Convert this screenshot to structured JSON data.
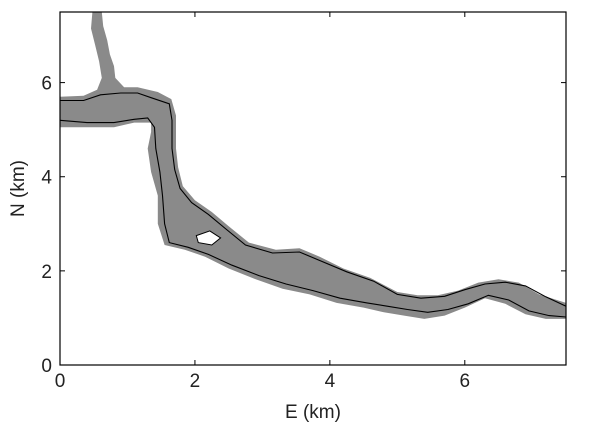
{
  "chart_data": {
    "type": "area",
    "title": "",
    "xlabel": "E (km)",
    "ylabel": "N (km)",
    "xlim": [
      0,
      7.5
    ],
    "ylim": [
      0,
      7.5
    ],
    "xticks": [
      0,
      2,
      4,
      6
    ],
    "yticks": [
      0,
      2,
      4,
      6
    ],
    "grid": false,
    "colors": {
      "fill": "#8a8a8a",
      "outline": "#000000",
      "frame": "#000000"
    },
    "series": [
      {
        "kind": "filled-region",
        "points": [
          [
            0.48,
            7.5
          ],
          [
            0.62,
            7.5
          ],
          [
            0.64,
            7.2
          ],
          [
            0.7,
            6.9
          ],
          [
            0.74,
            6.6
          ],
          [
            0.8,
            6.35
          ],
          [
            0.82,
            6.1
          ],
          [
            0.95,
            5.9
          ],
          [
            1.15,
            5.9
          ],
          [
            1.45,
            5.8
          ],
          [
            1.65,
            5.65
          ],
          [
            1.72,
            5.3
          ],
          [
            1.72,
            4.6
          ],
          [
            1.75,
            4.2
          ],
          [
            1.82,
            3.8
          ],
          [
            2.0,
            3.5
          ],
          [
            2.25,
            3.25
          ],
          [
            2.5,
            2.95
          ],
          [
            2.8,
            2.6
          ],
          [
            3.2,
            2.45
          ],
          [
            3.55,
            2.48
          ],
          [
            3.85,
            2.3
          ],
          [
            4.2,
            2.05
          ],
          [
            4.6,
            1.85
          ],
          [
            5.0,
            1.55
          ],
          [
            5.3,
            1.48
          ],
          [
            5.6,
            1.48
          ],
          [
            5.9,
            1.58
          ],
          [
            6.2,
            1.75
          ],
          [
            6.5,
            1.82
          ],
          [
            6.8,
            1.75
          ],
          [
            7.1,
            1.5
          ],
          [
            7.5,
            1.32
          ],
          [
            7.5,
            0.98
          ],
          [
            7.2,
            0.98
          ],
          [
            6.9,
            1.08
          ],
          [
            6.6,
            1.3
          ],
          [
            6.3,
            1.42
          ],
          [
            6.0,
            1.22
          ],
          [
            5.7,
            1.05
          ],
          [
            5.4,
            0.98
          ],
          [
            5.1,
            1.05
          ],
          [
            4.8,
            1.12
          ],
          [
            4.5,
            1.22
          ],
          [
            4.1,
            1.32
          ],
          [
            3.7,
            1.5
          ],
          [
            3.3,
            1.62
          ],
          [
            2.9,
            1.82
          ],
          [
            2.5,
            2.05
          ],
          [
            2.15,
            2.3
          ],
          [
            1.85,
            2.45
          ],
          [
            1.55,
            2.55
          ],
          [
            1.45,
            3.0
          ],
          [
            1.45,
            3.6
          ],
          [
            1.35,
            4.1
          ],
          [
            1.3,
            4.6
          ],
          [
            1.35,
            4.95
          ],
          [
            1.35,
            5.15
          ],
          [
            1.1,
            5.15
          ],
          [
            0.8,
            5.05
          ],
          [
            0.4,
            5.05
          ],
          [
            0.0,
            5.05
          ],
          [
            0.0,
            5.7
          ],
          [
            0.35,
            5.72
          ],
          [
            0.55,
            5.85
          ],
          [
            0.62,
            6.1
          ],
          [
            0.58,
            6.45
          ],
          [
            0.52,
            6.8
          ],
          [
            0.46,
            7.15
          ]
        ]
      },
      {
        "kind": "hole",
        "points": [
          [
            2.02,
            2.75
          ],
          [
            2.22,
            2.85
          ],
          [
            2.38,
            2.7
          ],
          [
            2.25,
            2.55
          ],
          [
            2.05,
            2.6
          ]
        ]
      },
      {
        "kind": "outline",
        "points": [
          [
            0.0,
            5.62
          ],
          [
            0.35,
            5.62
          ],
          [
            0.6,
            5.74
          ],
          [
            0.9,
            5.78
          ],
          [
            1.15,
            5.78
          ],
          [
            1.35,
            5.68
          ],
          [
            1.62,
            5.55
          ],
          [
            1.66,
            5.2
          ],
          [
            1.66,
            4.6
          ],
          [
            1.7,
            4.15
          ],
          [
            1.78,
            3.75
          ],
          [
            1.95,
            3.45
          ],
          [
            2.2,
            3.2
          ],
          [
            2.45,
            2.9
          ],
          [
            2.75,
            2.55
          ],
          [
            3.15,
            2.38
          ],
          [
            3.55,
            2.4
          ],
          [
            3.85,
            2.22
          ],
          [
            4.25,
            1.98
          ],
          [
            4.65,
            1.78
          ],
          [
            5.0,
            1.5
          ],
          [
            5.35,
            1.42
          ],
          [
            5.7,
            1.46
          ],
          [
            6.0,
            1.6
          ],
          [
            6.3,
            1.72
          ],
          [
            6.6,
            1.76
          ],
          [
            6.9,
            1.68
          ],
          [
            7.2,
            1.45
          ],
          [
            7.5,
            1.25
          ]
        ]
      },
      {
        "kind": "outline",
        "points": [
          [
            0.0,
            5.2
          ],
          [
            0.4,
            5.15
          ],
          [
            0.8,
            5.15
          ],
          [
            1.1,
            5.22
          ],
          [
            1.3,
            5.25
          ],
          [
            1.4,
            5.05
          ],
          [
            1.42,
            4.6
          ],
          [
            1.48,
            4.1
          ],
          [
            1.52,
            3.6
          ],
          [
            1.55,
            3.0
          ],
          [
            1.62,
            2.6
          ],
          [
            1.9,
            2.5
          ],
          [
            2.2,
            2.35
          ],
          [
            2.55,
            2.12
          ],
          [
            2.95,
            1.9
          ],
          [
            3.35,
            1.72
          ],
          [
            3.75,
            1.58
          ],
          [
            4.15,
            1.42
          ],
          [
            4.55,
            1.32
          ],
          [
            4.85,
            1.25
          ],
          [
            5.15,
            1.18
          ],
          [
            5.45,
            1.12
          ],
          [
            5.75,
            1.18
          ],
          [
            6.05,
            1.3
          ],
          [
            6.35,
            1.48
          ],
          [
            6.65,
            1.38
          ],
          [
            6.95,
            1.15
          ],
          [
            7.25,
            1.05
          ],
          [
            7.5,
            1.02
          ]
        ]
      }
    ]
  }
}
